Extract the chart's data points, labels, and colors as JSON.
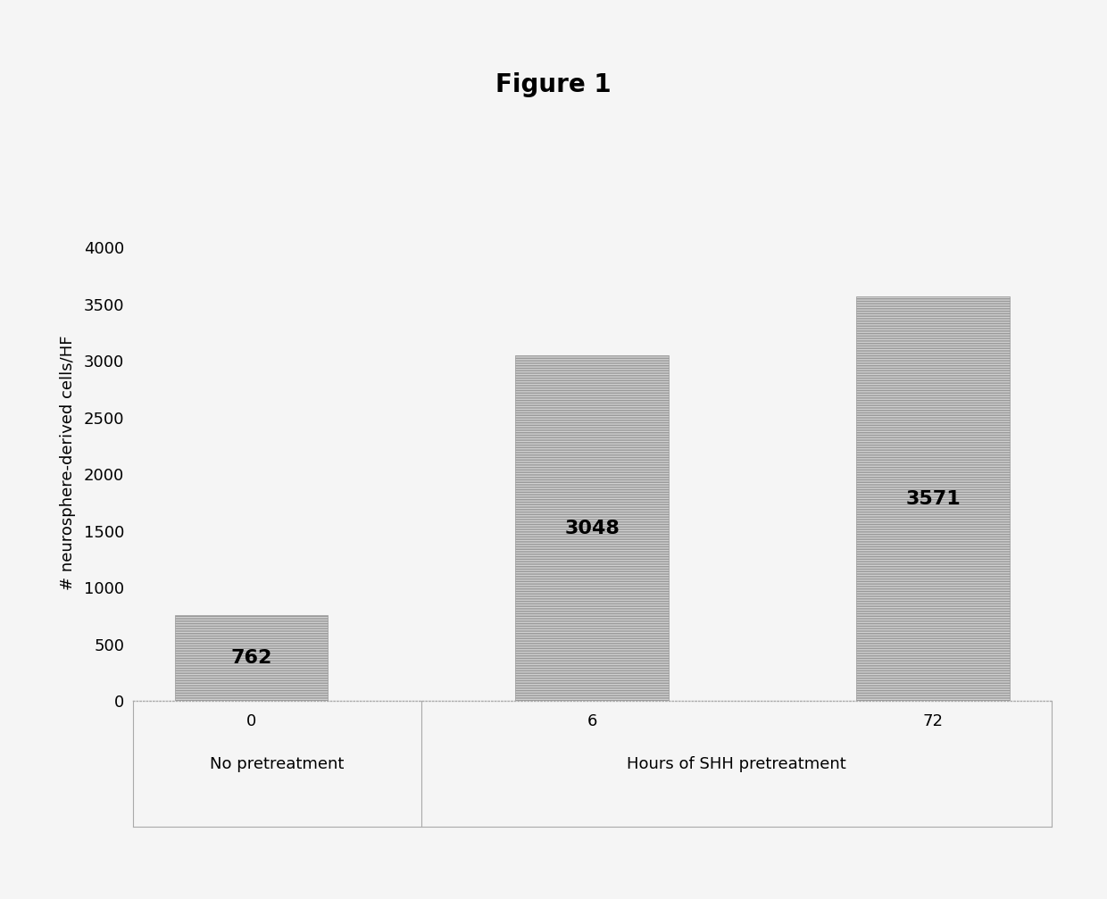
{
  "title": "Figure 1",
  "categories": [
    "0",
    "6",
    "72"
  ],
  "values": [
    762,
    3048,
    3571
  ],
  "bar_labels": [
    "762",
    "3048",
    "3571"
  ],
  "xlabel_group1": "No pretreatment",
  "xlabel_group2": "Hours of SHH pretreatment",
  "ylabel": "# neurosphere-derived cells/HF",
  "ylim": [
    0,
    4200
  ],
  "yticks": [
    0,
    500,
    1000,
    1500,
    2000,
    2500,
    3000,
    3500,
    4000
  ],
  "bar_color": "#d0d0d0",
  "bar_hatch": "------",
  "bar_edgecolor": "#999999",
  "title_fontsize": 20,
  "label_fontsize": 13,
  "tick_fontsize": 13,
  "value_fontsize": 16,
  "background_color": "#f5f5f5",
  "figsize": [
    12.4,
    10.07
  ]
}
